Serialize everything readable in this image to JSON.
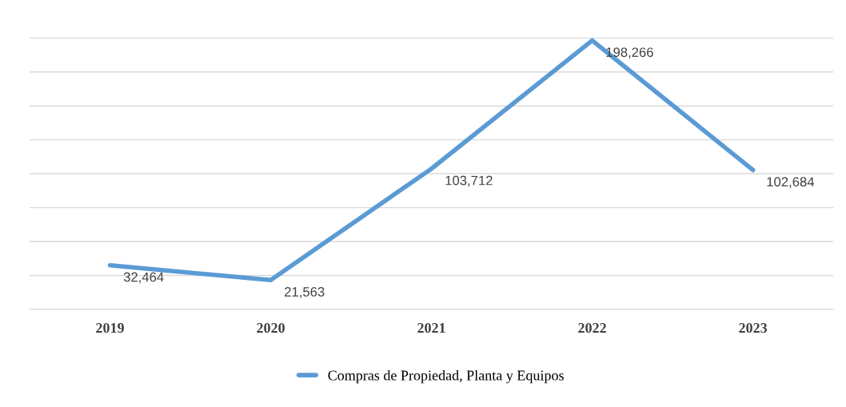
{
  "chart_data": {
    "type": "line",
    "categories": [
      "2019",
      "2020",
      "2021",
      "2022",
      "2023"
    ],
    "series": [
      {
        "name": "Compras de Propiedad, Planta y Equipos",
        "color": "#5b9bd5",
        "values": [
          32464,
          21563,
          103712,
          198266,
          102684
        ],
        "value_labels": [
          "32,464",
          "21,563",
          "103,712",
          "198,266",
          "102,684"
        ]
      }
    ],
    "tick_labels": "x",
    "grid": "y",
    "legend": "bottom",
    "marker": "none",
    "line_style": "solid"
  }
}
